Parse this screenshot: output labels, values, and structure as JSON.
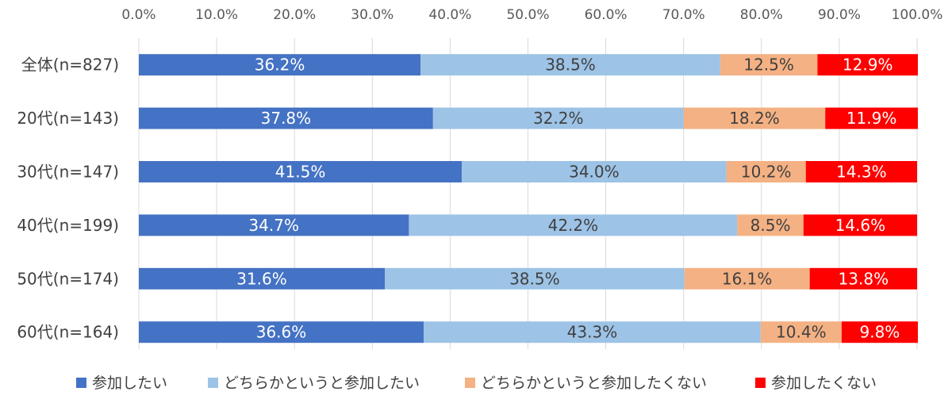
{
  "chart_data": {
    "type": "bar",
    "orientation": "horizontal",
    "stacked": "percent",
    "title": "",
    "xlim": [
      0,
      100
    ],
    "x_ticks": [
      "0.0%",
      "10.0%",
      "20.0%",
      "30.0%",
      "40.0%",
      "50.0%",
      "60.0%",
      "70.0%",
      "80.0%",
      "90.0%",
      "100.0%"
    ],
    "categories": [
      "全体(n=827)",
      "20代(n=143)",
      "30代(n=147)",
      "40代(n=199)",
      "50代(n=174)",
      "60代(n=164)"
    ],
    "series": [
      {
        "name": "参加したい",
        "color": "#4472c4",
        "label_color": "#ffffff",
        "values": [
          36.2,
          37.8,
          41.5,
          34.7,
          31.6,
          36.6
        ],
        "labels": [
          "36.2%",
          "37.8%",
          "41.5%",
          "34.7%",
          "31.6%",
          "36.6%"
        ]
      },
      {
        "name": "どちらかというと参加したい",
        "color": "#9dc3e6",
        "label_color": "#404040",
        "values": [
          38.5,
          32.2,
          34.0,
          42.2,
          38.5,
          43.3
        ],
        "labels": [
          "38.5%",
          "32.2%",
          "34.0%",
          "42.2%",
          "38.5%",
          "43.3%"
        ]
      },
      {
        "name": "どちらかというと参加したくない",
        "color": "#f4b183",
        "label_color": "#404040",
        "values": [
          12.5,
          18.2,
          10.2,
          8.5,
          16.1,
          10.4
        ],
        "labels": [
          "12.5%",
          "18.2%",
          "10.2%",
          "8.5%",
          "16.1%",
          "10.4%"
        ]
      },
      {
        "name": "参加したくない",
        "color": "#ff0000",
        "label_color": "#ffffff",
        "values": [
          12.9,
          11.9,
          14.3,
          14.6,
          13.8,
          9.8
        ],
        "labels": [
          "12.9%",
          "11.9%",
          "14.3%",
          "14.6%",
          "13.8%",
          "9.8%"
        ]
      }
    ],
    "grid": true,
    "legend_position": "bottom"
  }
}
